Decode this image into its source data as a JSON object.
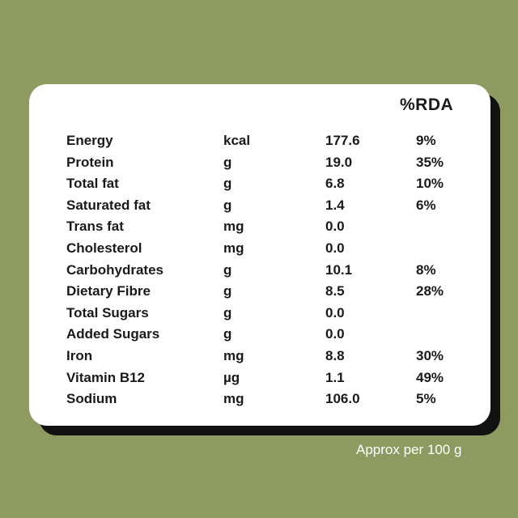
{
  "header": {
    "rda_label": "%RDA"
  },
  "nutrients": [
    {
      "name": "Energy",
      "unit": "kcal",
      "value": "177.6",
      "rda": "9%"
    },
    {
      "name": "Protein",
      "unit": "g",
      "value": "19.0",
      "rda": "35%"
    },
    {
      "name": "Total fat",
      "unit": "g",
      "value": "6.8",
      "rda": "10%"
    },
    {
      "name": "Saturated fat",
      "unit": "g",
      "value": "1.4",
      "rda": "6%"
    },
    {
      "name": "Trans fat",
      "unit": "mg",
      "value": "0.0",
      "rda": ""
    },
    {
      "name": "Cholesterol",
      "unit": "mg",
      "value": "0.0",
      "rda": ""
    },
    {
      "name": "Carbohydrates",
      "unit": "g",
      "value": "10.1",
      "rda": "8%"
    },
    {
      "name": "Dietary Fibre",
      "unit": "g",
      "value": "8.5",
      "rda": "28%"
    },
    {
      "name": "Total Sugars",
      "unit": "g",
      "value": "0.0",
      "rda": ""
    },
    {
      "name": "Added Sugars",
      "unit": "g",
      "value": "0.0",
      "rda": ""
    },
    {
      "name": "Iron",
      "unit": "mg",
      "value": "8.8",
      "rda": "30%"
    },
    {
      "name": "Vitamin B12",
      "unit": "µg",
      "value": "1.1",
      "rda": "49%"
    },
    {
      "name": "Sodium",
      "unit": "mg",
      "value": "106.0",
      "rda": "5%"
    }
  ],
  "footnote": "Approx per 100 g",
  "colors": {
    "background": "#8d9b60",
    "card": "#ffffff",
    "shadow": "#111111",
    "text": "#1a1a1a"
  }
}
